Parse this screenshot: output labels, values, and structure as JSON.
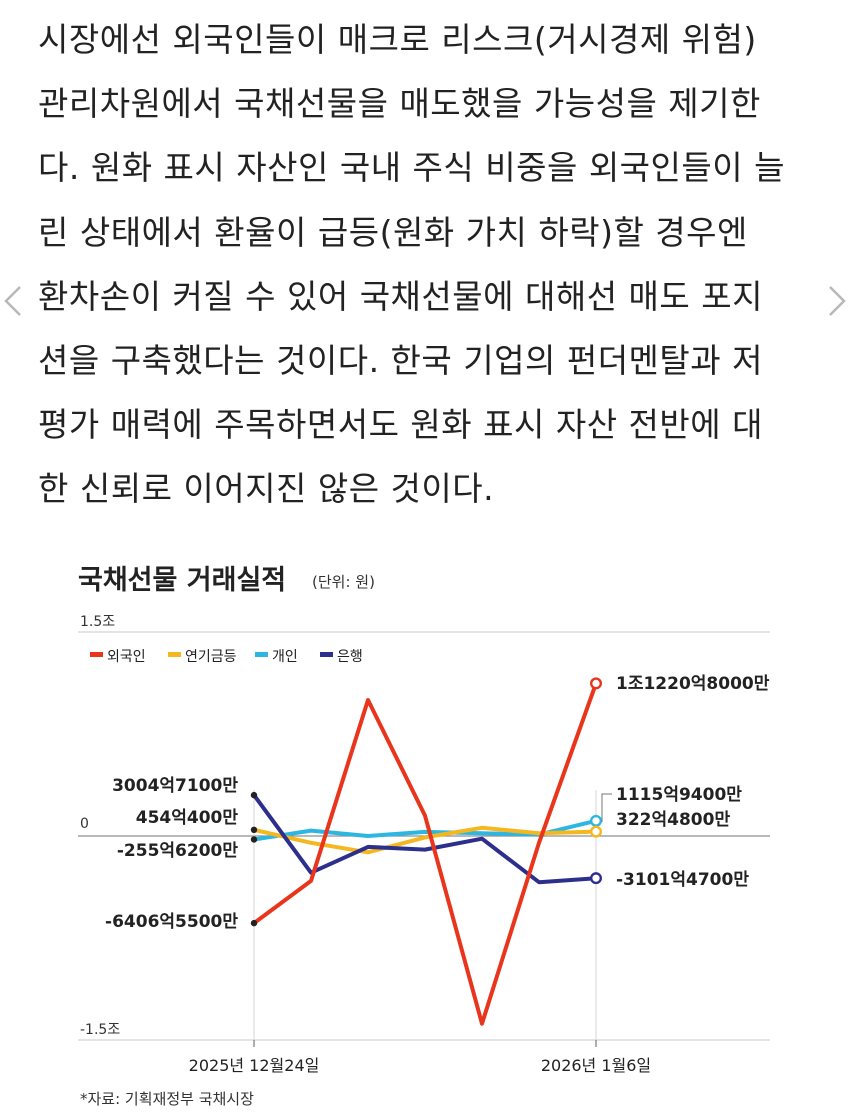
{
  "article": {
    "lines": [
      "시장에선 외국인들이 매크로 리스크(거시경제 위험)",
      "관리차원에서 국채선물을 매도했을 가능성을 제기한",
      "다. 원화 표시 자산인 국내 주식 비중을 외국인들이 늘",
      "린 상태에서 환율이 급등(원화 가치 하락)할 경우엔",
      "환차손이 커질 수 있어 국채선물에 대해선 매도 포지",
      "션을 구축했다는 것이다. 한국 기업의 펀더멘탈과 저",
      "평가 매력에 주목하면서도 원화 표시 자산 전반에 대",
      "한 신뢰로 이어지진 않은 것이다."
    ]
  },
  "nav": {
    "prev_icon": "chevron-left-icon",
    "next_icon": "chevron-right-icon",
    "color": "#b8b8b8"
  },
  "chart_data": {
    "type": "line",
    "title": "국채선물 거래실적",
    "unit": "(단위: 원)",
    "ylim": [
      -1.5,
      1.5
    ],
    "yticks": [
      {
        "value": 1.5,
        "label": "1.5조"
      },
      {
        "value": 0,
        "label": "0"
      },
      {
        "value": -1.5,
        "label": "-1.5조"
      }
    ],
    "x_labels": [
      "2025년 12월24일",
      "2026년 1월6일"
    ],
    "x": [
      "2025-12-24",
      "2025-12-26",
      "2025-12-29",
      "2025-12-30",
      "2026-01-02",
      "2026-01-05",
      "2026-01-06"
    ],
    "series": [
      {
        "name": "외국인",
        "color": "#e8351c",
        "values": [
          -0.64065,
          -0.33,
          1.0,
          0.15,
          -1.38,
          -0.05,
          1.12208
        ]
      },
      {
        "name": "연기금등",
        "color": "#f4b71f",
        "values": [
          0.04544,
          -0.05,
          -0.12,
          -0.01,
          0.06,
          0.02,
          0.03225
        ]
      },
      {
        "name": "개인",
        "color": "#2cb7e3",
        "values": [
          -0.02556,
          0.04,
          0.0,
          0.03,
          0.02,
          0.01,
          0.11159
        ]
      },
      {
        "name": "은행",
        "color": "#2d2f8c",
        "values": [
          0.30047,
          -0.27,
          -0.08,
          -0.1,
          -0.02,
          -0.34,
          -0.31015
        ]
      }
    ],
    "start_labels": [
      {
        "label": "3004억7100만",
        "value": 0.30047
      },
      {
        "label": "454억400만",
        "value": 0.04544
      },
      {
        "label": "-255억6200만",
        "value": -0.02556
      },
      {
        "label": "-6406억5500만",
        "value": -0.64065
      }
    ],
    "end_labels": [
      {
        "label": "1조1220억8000만",
        "value": 1.12208
      },
      {
        "label": "1115억9400만",
        "value": 0.11159
      },
      {
        "label": "322억4800만",
        "value": 0.03225
      },
      {
        "label": "-3101억4700만",
        "value": -0.31015
      }
    ],
    "source": "*자료: 기획재정부 국채시장",
    "grid": "horizontal",
    "legend": "top-left"
  }
}
